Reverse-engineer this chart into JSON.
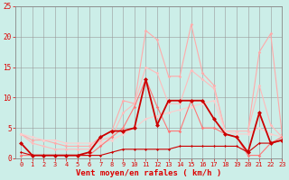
{
  "x": [
    0,
    1,
    2,
    3,
    4,
    5,
    6,
    7,
    8,
    9,
    10,
    11,
    12,
    13,
    14,
    15,
    16,
    17,
    18,
    19,
    20,
    21,
    22,
    23
  ],
  "series": [
    {
      "values": [
        4.0,
        3.0,
        3.0,
        2.5,
        2.0,
        2.0,
        2.0,
        3.5,
        4.5,
        9.5,
        9.0,
        21.0,
        19.5,
        13.5,
        13.5,
        22.0,
        14.0,
        12.0,
        4.5,
        4.5,
        4.5,
        17.5,
        20.5,
        4.0
      ],
      "color": "#ffaaaa",
      "lw": 0.8,
      "marker": "D",
      "ms": 1.8,
      "zorder": 2
    },
    {
      "values": [
        4.0,
        2.5,
        2.0,
        1.5,
        1.5,
        1.5,
        1.5,
        3.0,
        3.5,
        7.5,
        9.0,
        15.0,
        14.0,
        9.0,
        9.0,
        14.5,
        13.0,
        11.5,
        4.5,
        4.5,
        4.5,
        12.0,
        5.5,
        3.5
      ],
      "color": "#ffbbbb",
      "lw": 0.8,
      "marker": "D",
      "ms": 1.8,
      "zorder": 2
    },
    {
      "values": [
        4.0,
        3.5,
        3.0,
        3.0,
        2.5,
        2.5,
        2.5,
        2.5,
        3.0,
        4.0,
        5.0,
        6.5,
        7.0,
        7.5,
        8.0,
        8.5,
        9.0,
        9.5,
        4.5,
        4.0,
        4.0,
        5.0,
        4.0,
        3.5
      ],
      "color": "#ffcccc",
      "lw": 0.8,
      "marker": "D",
      "ms": 1.8,
      "zorder": 2
    },
    {
      "values": [
        0.5,
        0.5,
        0.5,
        0.5,
        0.5,
        0.5,
        0.5,
        2.0,
        3.5,
        5.0,
        8.5,
        13.0,
        8.5,
        4.5,
        4.5,
        9.5,
        5.0,
        5.0,
        4.0,
        3.5,
        0.5,
        0.5,
        2.5,
        3.5
      ],
      "color": "#ff7777",
      "lw": 0.8,
      "marker": "D",
      "ms": 1.8,
      "zorder": 3
    },
    {
      "values": [
        2.5,
        0.5,
        0.5,
        0.5,
        0.5,
        0.5,
        1.0,
        3.5,
        4.5,
        4.5,
        5.0,
        13.0,
        5.5,
        9.5,
        9.5,
        9.5,
        9.5,
        6.5,
        4.0,
        3.5,
        1.0,
        7.5,
        2.5,
        3.0
      ],
      "color": "#cc0000",
      "lw": 1.3,
      "marker": "D",
      "ms": 2.5,
      "zorder": 5
    },
    {
      "values": [
        1.0,
        0.5,
        0.5,
        0.5,
        0.5,
        0.5,
        0.5,
        0.5,
        1.0,
        1.5,
        1.5,
        1.5,
        1.5,
        1.5,
        2.0,
        2.0,
        2.0,
        2.0,
        2.0,
        2.0,
        1.0,
        2.5,
        2.5,
        3.0
      ],
      "color": "#cc0000",
      "lw": 0.8,
      "marker": "D",
      "ms": 1.5,
      "zorder": 4
    }
  ],
  "xlabel": "Vent moyen/en rafales ( km/h )",
  "xlim": [
    -0.5,
    23
  ],
  "ylim": [
    0,
    25
  ],
  "yticks": [
    0,
    5,
    10,
    15,
    20,
    25
  ],
  "xticks": [
    0,
    1,
    2,
    3,
    4,
    5,
    6,
    7,
    8,
    9,
    10,
    11,
    12,
    13,
    14,
    15,
    16,
    17,
    18,
    19,
    20,
    21,
    22,
    23
  ],
  "bg_color": "#cceee8",
  "grid_color": "#999999",
  "tick_color": "#dd0000",
  "xlabel_color": "#dd0000",
  "tick_fontsize": 5.0,
  "xlabel_fontsize": 6.5
}
